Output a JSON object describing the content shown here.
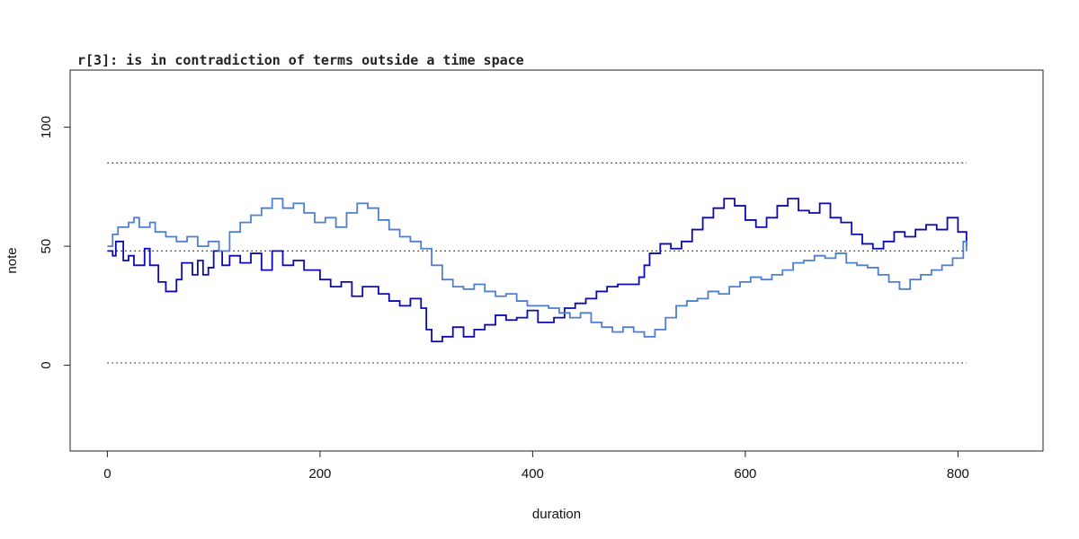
{
  "chart_data": {
    "type": "line",
    "title": "r[3]: is in contradiction of terms outside a time space",
    "xlabel": "duration",
    "ylabel": "note",
    "xlim": [
      -35,
      880
    ],
    "ylim": [
      -36,
      124
    ],
    "xticks": [
      0,
      200,
      400,
      600,
      800
    ],
    "yticks": [
      0,
      50,
      100
    ],
    "grid": false,
    "reference_lines": [
      {
        "y": 85,
        "style": "dotted",
        "x_range": [
          0,
          808
        ]
      },
      {
        "y": 48,
        "style": "dotted",
        "x_range": [
          0,
          808
        ]
      },
      {
        "y": 1,
        "style": "dotted",
        "x_range": [
          0,
          808
        ]
      }
    ],
    "series": [
      {
        "color": "#0b0bb0",
        "step": true,
        "points": [
          [
            0,
            48
          ],
          [
            5,
            46
          ],
          [
            8,
            52
          ],
          [
            15,
            44
          ],
          [
            20,
            46
          ],
          [
            25,
            42
          ],
          [
            35,
            49
          ],
          [
            40,
            42
          ],
          [
            48,
            35
          ],
          [
            55,
            31
          ],
          [
            65,
            36
          ],
          [
            70,
            43
          ],
          [
            80,
            38
          ],
          [
            85,
            44
          ],
          [
            90,
            38
          ],
          [
            95,
            41
          ],
          [
            100,
            48
          ],
          [
            108,
            42
          ],
          [
            115,
            46
          ],
          [
            125,
            43
          ],
          [
            135,
            47
          ],
          [
            145,
            40
          ],
          [
            155,
            48
          ],
          [
            165,
            42
          ],
          [
            175,
            44
          ],
          [
            185,
            40
          ],
          [
            200,
            36
          ],
          [
            210,
            33
          ],
          [
            220,
            35
          ],
          [
            230,
            29
          ],
          [
            240,
            33
          ],
          [
            255,
            30
          ],
          [
            265,
            27
          ],
          [
            275,
            25
          ],
          [
            285,
            28
          ],
          [
            295,
            24
          ],
          [
            300,
            15
          ],
          [
            305,
            10
          ],
          [
            315,
            12
          ],
          [
            325,
            16
          ],
          [
            335,
            12
          ],
          [
            345,
            15
          ],
          [
            355,
            17
          ],
          [
            365,
            21
          ],
          [
            375,
            19
          ],
          [
            385,
            20
          ],
          [
            395,
            23
          ],
          [
            405,
            18
          ],
          [
            420,
            20
          ],
          [
            430,
            24
          ],
          [
            440,
            26
          ],
          [
            450,
            28
          ],
          [
            460,
            31
          ],
          [
            470,
            33
          ],
          [
            480,
            34
          ],
          [
            490,
            34
          ],
          [
            500,
            37
          ],
          [
            505,
            42
          ],
          [
            510,
            47
          ],
          [
            520,
            51
          ],
          [
            530,
            49
          ],
          [
            540,
            52
          ],
          [
            550,
            57
          ],
          [
            560,
            62
          ],
          [
            570,
            66
          ],
          [
            580,
            70
          ],
          [
            590,
            67
          ],
          [
            600,
            61
          ],
          [
            610,
            58
          ],
          [
            620,
            62
          ],
          [
            630,
            67
          ],
          [
            640,
            70
          ],
          [
            650,
            65
          ],
          [
            660,
            64
          ],
          [
            670,
            68
          ],
          [
            680,
            62
          ],
          [
            690,
            60
          ],
          [
            700,
            55
          ],
          [
            710,
            51
          ],
          [
            720,
            49
          ],
          [
            730,
            52
          ],
          [
            740,
            56
          ],
          [
            750,
            54
          ],
          [
            760,
            57
          ],
          [
            770,
            59
          ],
          [
            780,
            57
          ],
          [
            790,
            62
          ],
          [
            800,
            56
          ],
          [
            808,
            50
          ]
        ]
      },
      {
        "color": "#4f7fd0",
        "step": true,
        "points": [
          [
            0,
            50
          ],
          [
            5,
            55
          ],
          [
            10,
            58
          ],
          [
            20,
            60
          ],
          [
            25,
            62
          ],
          [
            30,
            58
          ],
          [
            40,
            60
          ],
          [
            45,
            56
          ],
          [
            55,
            54
          ],
          [
            65,
            52
          ],
          [
            75,
            54
          ],
          [
            85,
            50
          ],
          [
            95,
            52
          ],
          [
            105,
            48
          ],
          [
            115,
            56
          ],
          [
            125,
            60
          ],
          [
            135,
            63
          ],
          [
            145,
            66
          ],
          [
            155,
            70
          ],
          [
            165,
            66
          ],
          [
            175,
            68
          ],
          [
            185,
            64
          ],
          [
            195,
            60
          ],
          [
            205,
            62
          ],
          [
            215,
            58
          ],
          [
            225,
            64
          ],
          [
            235,
            68
          ],
          [
            245,
            66
          ],
          [
            255,
            61
          ],
          [
            265,
            57
          ],
          [
            275,
            54
          ],
          [
            285,
            52
          ],
          [
            295,
            49
          ],
          [
            305,
            42
          ],
          [
            315,
            36
          ],
          [
            325,
            33
          ],
          [
            335,
            32
          ],
          [
            345,
            34
          ],
          [
            355,
            31
          ],
          [
            365,
            29
          ],
          [
            375,
            30
          ],
          [
            385,
            27
          ],
          [
            395,
            25
          ],
          [
            405,
            25
          ],
          [
            415,
            24
          ],
          [
            425,
            22
          ],
          [
            435,
            20
          ],
          [
            445,
            22
          ],
          [
            455,
            18
          ],
          [
            465,
            16
          ],
          [
            475,
            14
          ],
          [
            485,
            16
          ],
          [
            495,
            14
          ],
          [
            505,
            12
          ],
          [
            515,
            15
          ],
          [
            525,
            20
          ],
          [
            535,
            25
          ],
          [
            545,
            27
          ],
          [
            555,
            28
          ],
          [
            565,
            31
          ],
          [
            575,
            30
          ],
          [
            585,
            33
          ],
          [
            595,
            35
          ],
          [
            605,
            37
          ],
          [
            615,
            36
          ],
          [
            625,
            38
          ],
          [
            635,
            40
          ],
          [
            645,
            43
          ],
          [
            655,
            44
          ],
          [
            665,
            46
          ],
          [
            675,
            45
          ],
          [
            685,
            47
          ],
          [
            695,
            43
          ],
          [
            705,
            42
          ],
          [
            715,
            41
          ],
          [
            725,
            38
          ],
          [
            735,
            35
          ],
          [
            745,
            32
          ],
          [
            755,
            36
          ],
          [
            765,
            38
          ],
          [
            775,
            40
          ],
          [
            785,
            42
          ],
          [
            795,
            45
          ],
          [
            805,
            52
          ],
          [
            808,
            48
          ]
        ]
      }
    ]
  }
}
